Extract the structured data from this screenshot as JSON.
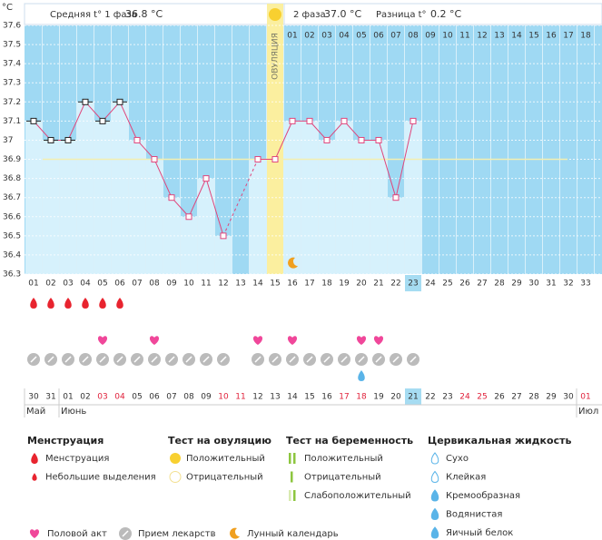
{
  "chart_data": {
    "type": "line",
    "y_unit": "°C",
    "header": {
      "phase1_text": "Средняя t° 1 фаза",
      "phase1_value": "36.8 °C",
      "phase2_text": "2 фаза",
      "phase2_value": "37.0 °C",
      "diff_text": "Разница t°",
      "diff_value": "0.2 °C"
    },
    "ovulation_label": "ОВУЛЯЦИЯ",
    "x": [
      "01",
      "02",
      "03",
      "04",
      "05",
      "06",
      "07",
      "08",
      "09",
      "10",
      "11",
      "12",
      "13",
      "14",
      "15",
      "16",
      "17",
      "18",
      "19",
      "20",
      "21",
      "22",
      "23",
      "24",
      "25",
      "26",
      "27",
      "28",
      "29",
      "30",
      "31",
      "32",
      "33"
    ],
    "values": [
      37.1,
      37.0,
      37.0,
      37.2,
      37.1,
      37.2,
      37.0,
      36.9,
      36.7,
      36.6,
      36.8,
      36.5,
      null,
      36.9,
      36.9,
      37.1,
      37.1,
      37.0,
      37.1,
      37.0,
      37.0,
      36.7,
      37.1,
      null,
      null,
      null,
      null,
      null,
      null,
      null,
      null,
      null,
      null
    ],
    "marker_black_days": [
      1,
      2,
      3,
      4,
      5,
      6
    ],
    "color": "#e0457b",
    "coverline": 36.9,
    "ylim": [
      36.3,
      37.6
    ],
    "yticks": [
      36.3,
      36.4,
      36.5,
      36.6,
      36.7,
      36.8,
      36.9,
      37,
      37.1,
      37.2,
      37.3,
      37.4,
      37.5,
      37.6
    ],
    "grid": true,
    "phase2_days": [
      "01",
      "02",
      "03",
      "04",
      "05",
      "06",
      "07",
      "08",
      "09",
      "10",
      "11",
      "12",
      "13",
      "14",
      "15",
      "16",
      "17",
      "18"
    ],
    "ovulation_day": 15,
    "current_day": 23,
    "menstruation_days": [
      1,
      2,
      3,
      4,
      5,
      6
    ],
    "intercourse_days": [
      5,
      8,
      14,
      16,
      20,
      21
    ],
    "medication_days": [
      1,
      2,
      3,
      4,
      5,
      6,
      7,
      8,
      9,
      10,
      11,
      12,
      14,
      15,
      16,
      17,
      18,
      19,
      20,
      21,
      22,
      23
    ],
    "cervical_creamy_days": [
      20
    ],
    "moon_days": [
      16
    ],
    "dates": [
      "30",
      "31",
      "01",
      "02",
      "03",
      "04",
      "05",
      "06",
      "07",
      "08",
      "09",
      "10",
      "11",
      "12",
      "13",
      "14",
      "15",
      "16",
      "17",
      "18",
      "19",
      "20",
      "21",
      "22",
      "23",
      "24",
      "25",
      "26",
      "27",
      "28",
      "29",
      "30",
      "01"
    ],
    "holiday_days": [
      5,
      6,
      12,
      13,
      19,
      20,
      26,
      27,
      33
    ],
    "months": [
      {
        "label": "Май",
        "day": 1
      },
      {
        "label": "Июнь",
        "day": 3
      },
      {
        "label": "Июл",
        "day": 33
      }
    ],
    "legend": {
      "menstruation": {
        "title": "Менструация",
        "items": [
          "Менструация",
          "Небольшие выделения"
        ]
      },
      "ovulation_test": {
        "title": "Тест на овуляцию",
        "items": [
          "Положительный",
          "Отрицательный"
        ]
      },
      "pregnancy_test": {
        "title": "Тест на беременность",
        "items": [
          "Положительный",
          "Отрицательный",
          "Слабоположительный"
        ]
      },
      "cervical": {
        "title": "Цервикальная жидкость",
        "items": [
          "Сухо",
          "Клейкая",
          "Кремообразная",
          "Водянистая",
          "Яичный белок"
        ]
      },
      "other": [
        "Половой акт",
        "Прием лекарств",
        "Лунный календарь"
      ]
    }
  }
}
